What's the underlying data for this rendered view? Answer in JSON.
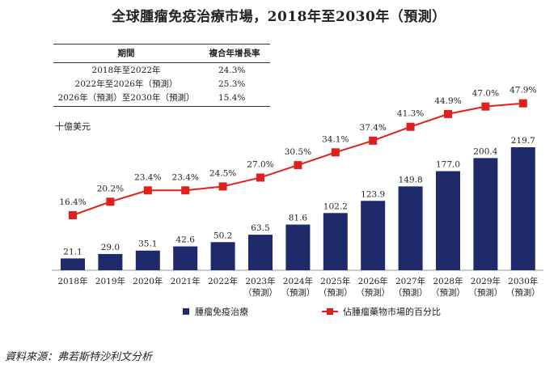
{
  "title": "全球腫瘤免疫治療市場，2018年至2030年（預測）",
  "cagr_table": {
    "headers": [
      "期間",
      "複合年增長率"
    ],
    "rows": [
      {
        "period": "2018年至2022年",
        "rate": "24.3%"
      },
      {
        "period": "2022年至2026年（預測）",
        "rate": "25.3%"
      },
      {
        "period": "2026年（預測）至2030年（預測）",
        "rate": "15.4%"
      }
    ]
  },
  "source": "資料來源：弗若斯特沙利文分析",
  "colors": {
    "bar": "#1f2a6b",
    "line": "#e0201c"
  },
  "chart_data": {
    "type": "bar+line",
    "unit_label": "十億美元",
    "categories": [
      [
        "2018年"
      ],
      [
        "2019年"
      ],
      [
        "2020年"
      ],
      [
        "2021年"
      ],
      [
        "2022年"
      ],
      [
        "2023年",
        "（預測）"
      ],
      [
        "2024年",
        "（預測）"
      ],
      [
        "2025年",
        "（預測）"
      ],
      [
        "2026年",
        "（預測）"
      ],
      [
        "2027年",
        "（預測）"
      ],
      [
        "2028年",
        "（預測）"
      ],
      [
        "2029年",
        "（預測）"
      ],
      [
        "2030年",
        "（預測）"
      ]
    ],
    "series": [
      {
        "name": "腫瘤免疫治療",
        "kind": "bar",
        "values": [
          21.1,
          29.0,
          35.1,
          42.6,
          50.2,
          63.5,
          81.6,
          102.2,
          123.9,
          149.8,
          177.0,
          200.4,
          219.7
        ],
        "labels": [
          "21.1",
          "29.0",
          "35.1",
          "42.6",
          "50.2",
          "63.5",
          "81.6",
          "102.2",
          "123.9",
          "149.8",
          "177.0",
          "200.4",
          "219.7"
        ]
      },
      {
        "name": "佔腫瘤藥物市場的百分比",
        "kind": "line",
        "values": [
          16.4,
          20.2,
          23.4,
          23.4,
          24.5,
          27.0,
          30.5,
          34.1,
          37.4,
          41.3,
          44.9,
          47.0,
          47.9
        ],
        "labels": [
          "16.4%",
          "20.2%",
          "23.4%",
          "23.4%",
          "24.5%",
          "27.0%",
          "30.5%",
          "34.1%",
          "37.4%",
          "41.3%",
          "44.9%",
          "47.0%",
          "47.9%"
        ]
      }
    ]
  }
}
